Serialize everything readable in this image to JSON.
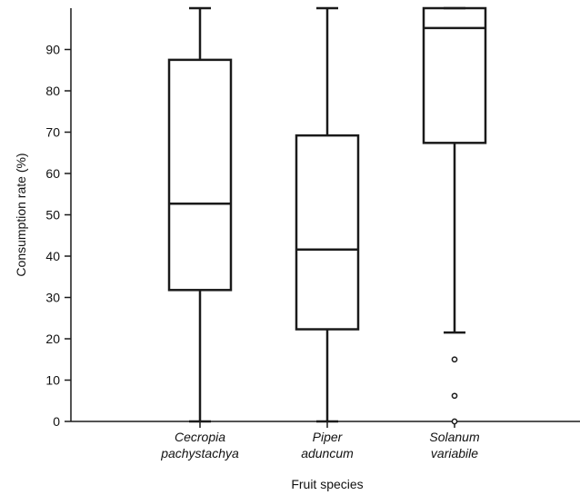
{
  "chart_data": {
    "type": "box",
    "xlabel": "Fruit species",
    "ylabel": "Consumption rate (%)",
    "ylim": [
      0,
      100
    ],
    "yticks": [
      0,
      10,
      20,
      30,
      40,
      50,
      60,
      70,
      80,
      90
    ],
    "grid": false,
    "categories": [
      {
        "label_lines": [
          "Cecropia",
          "pachystachya"
        ],
        "whisker_low": 0,
        "q1": 31.8,
        "median": 52.7,
        "q3": 87.5,
        "whisker_high": 100,
        "outliers": []
      },
      {
        "label_lines": [
          "Piper",
          "aduncum"
        ],
        "whisker_low": 0,
        "q1": 22.3,
        "median": 41.6,
        "q3": 69.2,
        "whisker_high": 100,
        "outliers": []
      },
      {
        "label_lines": [
          "Solanum",
          "variabile"
        ],
        "whisker_low": 21.5,
        "q1": 67.4,
        "median": 95.2,
        "q3": 100,
        "whisker_high": 100,
        "outliers": [
          15,
          6.2,
          0
        ]
      }
    ]
  }
}
